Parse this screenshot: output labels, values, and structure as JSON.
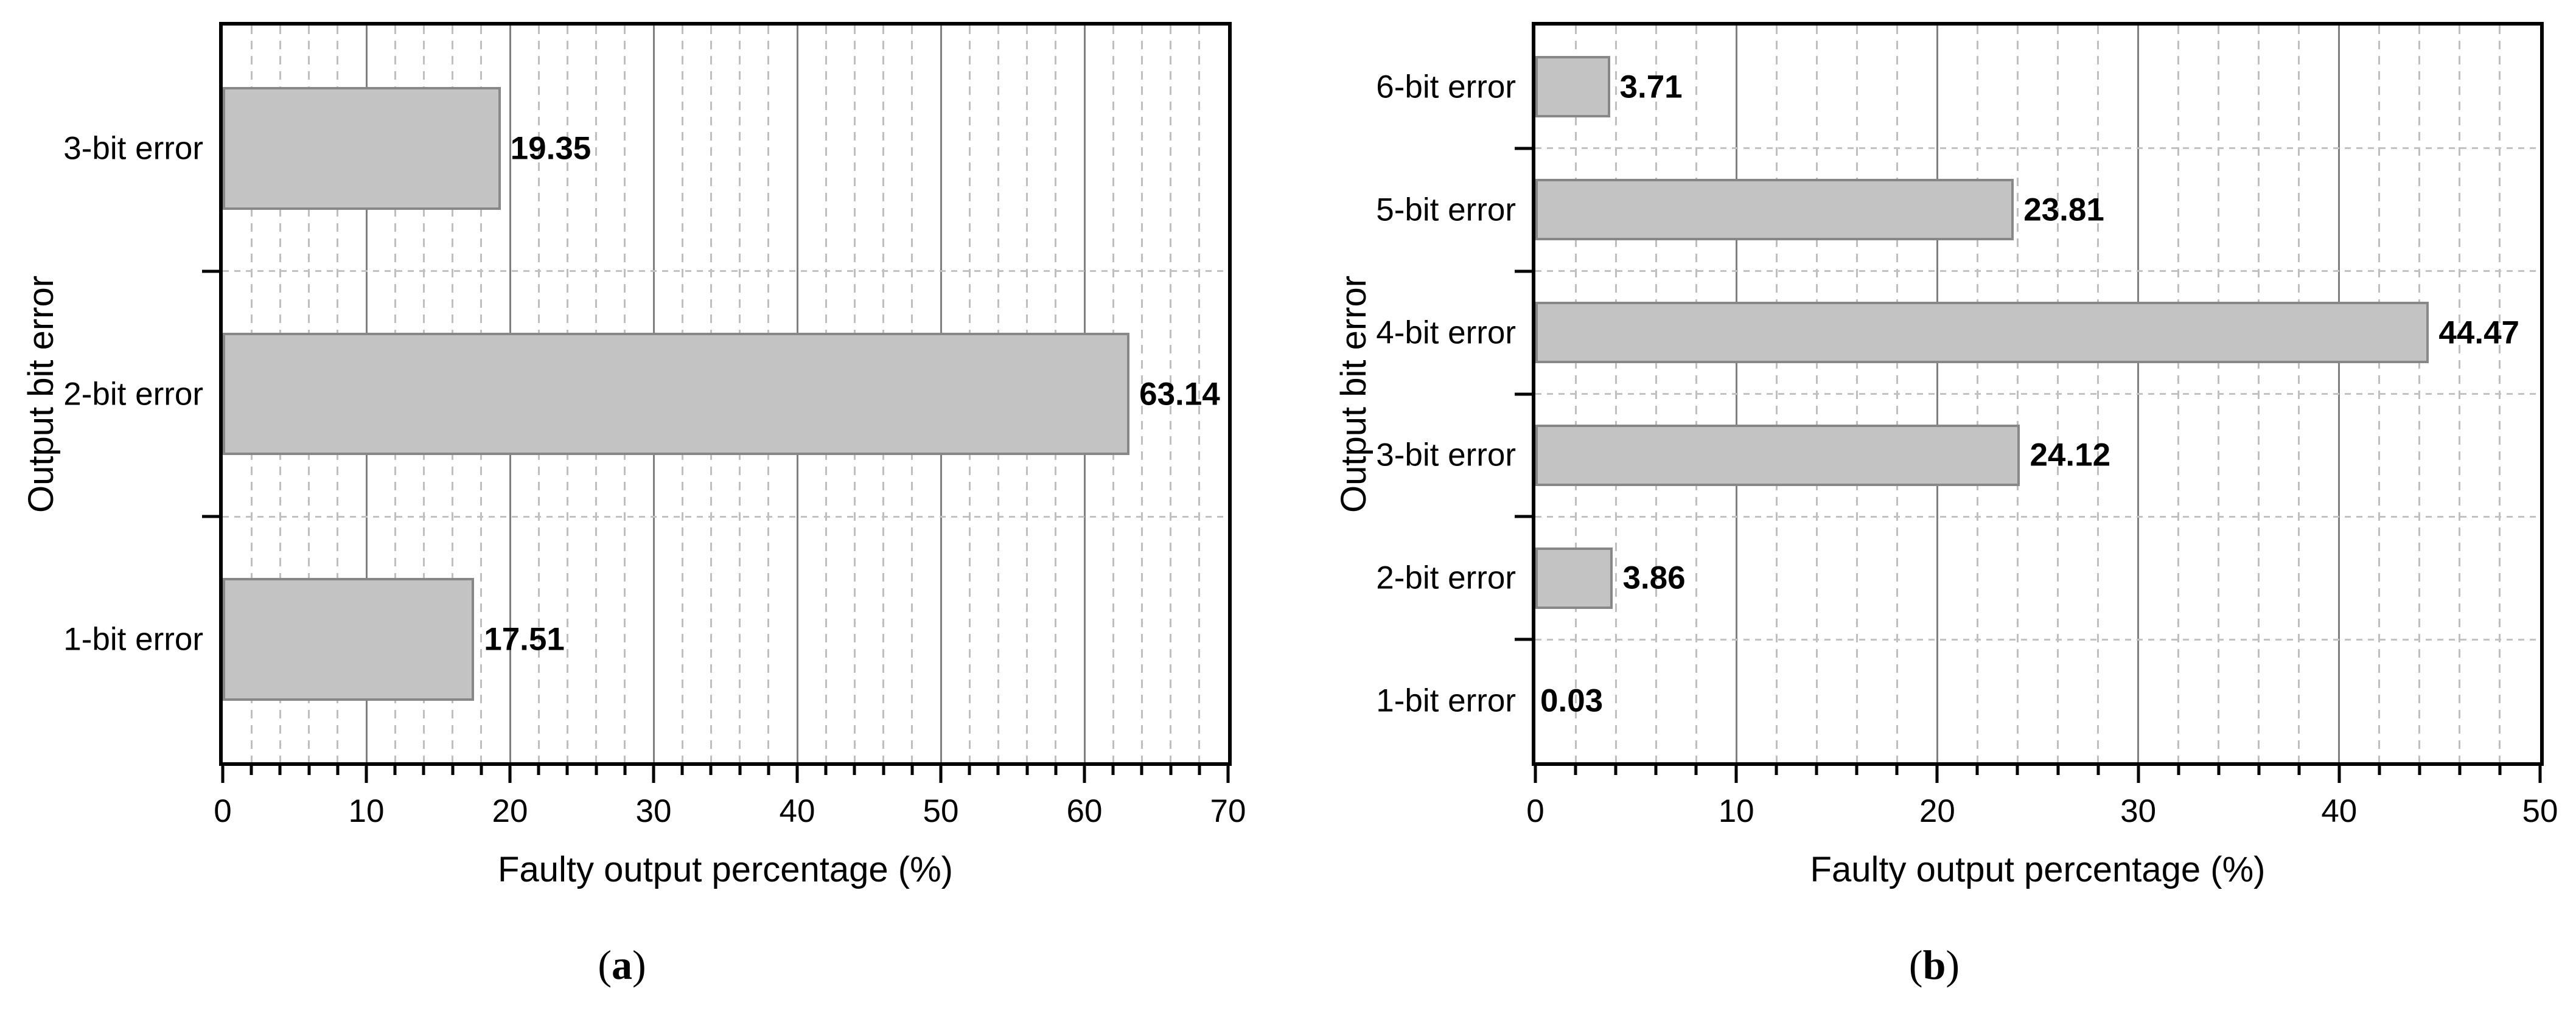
{
  "figure": {
    "background": "#ffffff"
  },
  "colors": {
    "bar_fill": "#c3c3c3",
    "bar_border": "#878787",
    "frame": "#000000",
    "grid_major": "#7f7f7f",
    "grid_minor": "#bfbfbf",
    "grid_boundary": "#c2c2c2",
    "text": "#000000"
  },
  "chart_data": [
    {
      "type": "bar",
      "orientation": "horizontal",
      "panel": {
        "open": "(",
        "letter": "a",
        "close": ")"
      },
      "title": "",
      "xlabel": "Faulty output percentage (%)",
      "ylabel": "Output bit error",
      "categories": [
        "3-bit error",
        "2-bit error",
        "1-bit error"
      ],
      "values": [
        19.35,
        63.14,
        17.51
      ],
      "value_labels": [
        "19.35",
        "63.14",
        "17.51"
      ],
      "xlim": [
        0,
        70
      ],
      "xticks": [
        0,
        10,
        20,
        30,
        40,
        50,
        60,
        70
      ],
      "major_tick_step": 10,
      "minor_tick_step": 2,
      "bar_fraction_of_band": 0.5,
      "grid": {
        "major_vertical": "solid",
        "minor_vertical": "dashed",
        "category_boundaries": "dotted"
      },
      "legend": "none"
    },
    {
      "type": "bar",
      "orientation": "horizontal",
      "panel": {
        "open": "(",
        "letter": "b",
        "close": ")"
      },
      "title": "",
      "xlabel": "Faulty output percentage (%)",
      "ylabel": "Output bit error",
      "categories": [
        "6-bit error",
        "5-bit error",
        "4-bit error",
        "3-bit error",
        "2-bit error",
        "1-bit error"
      ],
      "values": [
        3.71,
        23.81,
        44.47,
        24.12,
        3.86,
        0.03
      ],
      "value_labels": [
        "3.71",
        "23.81",
        "44.47",
        "24.12",
        "3.86",
        "0.03"
      ],
      "xlim": [
        0,
        50
      ],
      "xticks": [
        0,
        10,
        20,
        30,
        40,
        50
      ],
      "major_tick_step": 10,
      "minor_tick_step": 2,
      "bar_fraction_of_band": 0.5,
      "grid": {
        "major_vertical": "solid",
        "minor_vertical": "dashed",
        "category_boundaries": "dotted"
      },
      "legend": "none"
    }
  ]
}
